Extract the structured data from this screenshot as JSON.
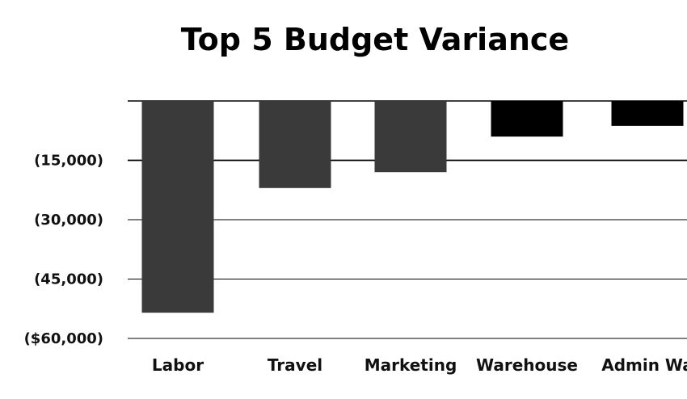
{
  "chart_data": {
    "type": "bar",
    "title": "Top 5 Budget Variance",
    "xlabel": "",
    "ylabel": "",
    "categories": [
      "Labor",
      "Travel",
      "Marketing",
      "Warehouse",
      "Admin Wa"
    ],
    "values": [
      -53500,
      -22000,
      -18000,
      -9000,
      -6300
    ],
    "ylim": [
      -60000,
      0
    ],
    "yticks": [
      {
        "value": -15000,
        "label": "(15,000)"
      },
      {
        "value": -30000,
        "label": "(30,000)"
      },
      {
        "value": -45000,
        "label": "(45,000)"
      },
      {
        "value": -60000,
        "label": "($60,000)"
      }
    ],
    "grid": true,
    "legend": "none",
    "colors": {
      "bar_default": "#3a3a3a",
      "bar_highlight": "#000000",
      "gridline": "#000000",
      "text": "#111111"
    },
    "highlighted_categories": [
      "Warehouse",
      "Admin Wa"
    ]
  }
}
